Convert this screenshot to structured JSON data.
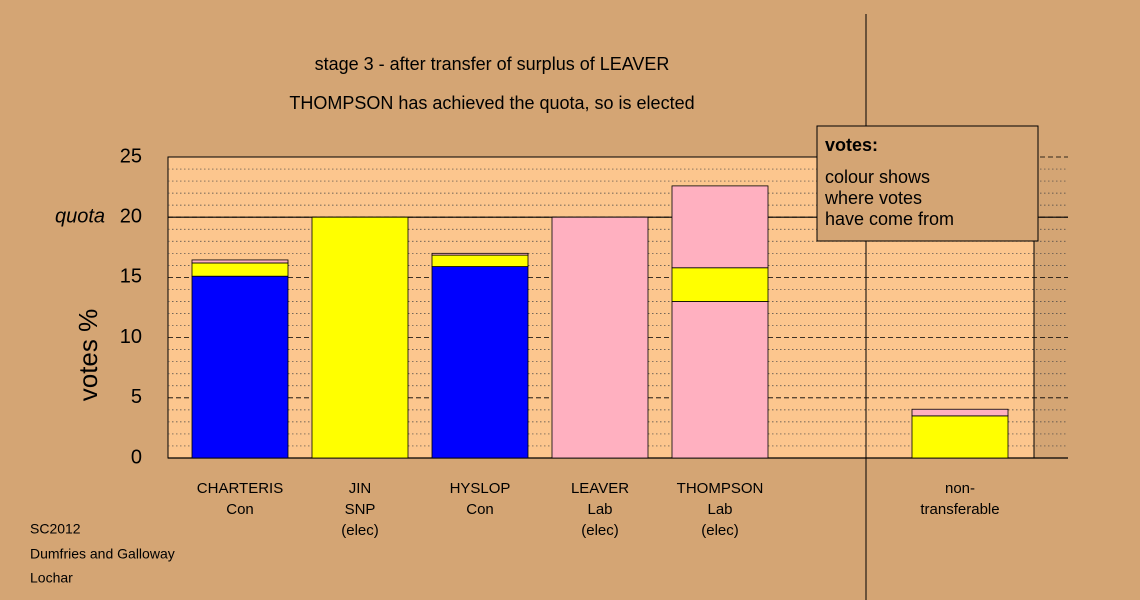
{
  "chart_data": {
    "type": "stacked_bar",
    "title": "stage 3 - after transfer of surplus of LEAVER",
    "subtitle": "THOMPSON has achieved the quota, so is elected",
    "y_label": "votes %",
    "categories": [
      [
        "CHARTERIS",
        "Con"
      ],
      [
        "JIN",
        "SNP",
        "(elec)"
      ],
      [
        "HYSLOP",
        "Con"
      ],
      [
        "LEAVER",
        "Lab",
        "(elec)"
      ],
      [
        "THOMPSON",
        "Lab",
        "(elec)"
      ],
      null,
      [
        "non-",
        "transferable"
      ]
    ],
    "series": [
      {
        "color": "#0000ff",
        "values": [
          15.1,
          0,
          15.9,
          0,
          0,
          0,
          0
        ]
      },
      {
        "color": "#ffb0c0",
        "values": [
          0,
          0,
          0,
          20,
          13,
          0,
          0
        ]
      },
      {
        "color": "#ffff00",
        "values": [
          1.1,
          20,
          0.95,
          0,
          2.8,
          0,
          3.5
        ]
      },
      {
        "color": "#ffb0c0",
        "values": [
          0.25,
          0,
          0.15,
          0,
          6.8,
          0,
          0.55
        ]
      }
    ],
    "ylim": [
      0,
      25
    ],
    "yticks": [
      0,
      5,
      10,
      15,
      20,
      25
    ],
    "minor_yticks": [
      1,
      2,
      3,
      4,
      6,
      7,
      8,
      9,
      11,
      12,
      13,
      14,
      16,
      17,
      18,
      19,
      21,
      22,
      23,
      24
    ],
    "quota": {
      "value": 20,
      "label": "quota"
    },
    "note": {
      "title": "votes:",
      "lines": [
        "colour shows",
        "where votes",
        "have come from"
      ]
    },
    "footer": [
      "SC2012",
      "Dumfries and Galloway",
      "Lochar"
    ]
  }
}
